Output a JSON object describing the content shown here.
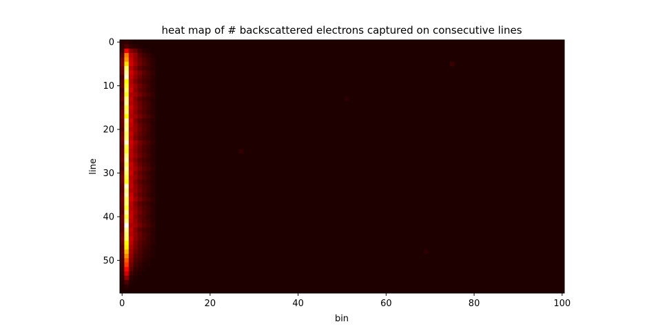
{
  "chart_data": {
    "type": "heatmap",
    "title": "heat map of # backscattered electrons captured on consecutive lines",
    "xlabel": "bin",
    "ylabel": "line",
    "xlim": [
      -0.5,
      100.5
    ],
    "ylim": [
      57.5,
      -0.5
    ],
    "n_cols": 101,
    "n_rows": 58,
    "x_ticks": [
      0,
      20,
      40,
      60,
      80,
      100
    ],
    "y_ticks": [
      0,
      10,
      20,
      30,
      40,
      50
    ],
    "colormap": "hot",
    "color_range": [
      0,
      1
    ],
    "background_value": 0.03,
    "column_profiles": [
      {
        "bin": 0,
        "values": [
          0.05,
          0.06,
          0.08,
          0.12,
          0.16,
          0.18,
          0.15,
          0.14,
          0.1,
          0.12,
          0.13,
          0.1,
          0.12,
          0.14,
          0.1,
          0.12,
          0.15,
          0.16,
          0.14,
          0.13,
          0.12,
          0.15,
          0.16,
          0.14,
          0.12,
          0.13,
          0.14,
          0.15,
          0.12,
          0.11,
          0.14,
          0.16,
          0.15,
          0.13,
          0.12,
          0.14,
          0.15,
          0.14,
          0.13,
          0.12,
          0.15,
          0.14,
          0.13,
          0.12,
          0.15,
          0.16,
          0.14,
          0.12,
          0.13,
          0.12,
          0.1,
          0.09,
          0.08,
          0.06,
          0.05,
          0.04,
          0.03,
          0.03
        ]
      },
      {
        "bin": 1,
        "values": [
          0.06,
          0.1,
          0.35,
          0.55,
          0.6,
          0.7,
          0.85,
          0.9,
          0.95,
          0.75,
          0.8,
          0.85,
          0.78,
          0.88,
          0.9,
          0.82,
          0.86,
          0.75,
          0.92,
          0.88,
          0.9,
          0.85,
          0.87,
          0.95,
          0.82,
          0.8,
          0.88,
          0.92,
          0.85,
          0.9,
          0.86,
          0.82,
          0.78,
          0.95,
          0.88,
          0.92,
          0.85,
          0.86,
          0.8,
          0.9,
          0.82,
          0.88,
          1.0,
          0.9,
          0.86,
          0.85,
          0.75,
          0.72,
          0.65,
          0.58,
          0.5,
          0.45,
          0.38,
          0.3,
          0.2,
          0.1,
          0.05,
          0.03
        ]
      },
      {
        "bin": 2,
        "values": [
          0.04,
          0.06,
          0.18,
          0.26,
          0.28,
          0.3,
          0.26,
          0.3,
          0.28,
          0.25,
          0.27,
          0.3,
          0.25,
          0.28,
          0.26,
          0.29,
          0.27,
          0.25,
          0.3,
          0.28,
          0.26,
          0.29,
          0.27,
          0.3,
          0.28,
          0.26,
          0.27,
          0.25,
          0.29,
          0.28,
          0.3,
          0.26,
          0.27,
          0.28,
          0.25,
          0.29,
          0.3,
          0.27,
          0.26,
          0.28,
          0.29,
          0.27,
          0.25,
          0.28,
          0.26,
          0.29,
          0.27,
          0.24,
          0.22,
          0.2,
          0.18,
          0.15,
          0.12,
          0.08,
          0.05,
          0.04,
          0.03,
          0.03
        ]
      },
      {
        "bin": 3,
        "values": [
          0.03,
          0.05,
          0.14,
          0.2,
          0.2,
          0.22,
          0.18,
          0.22,
          0.2,
          0.17,
          0.21,
          0.19,
          0.22,
          0.18,
          0.2,
          0.21,
          0.19,
          0.22,
          0.18,
          0.2,
          0.21,
          0.19,
          0.17,
          0.22,
          0.2,
          0.19,
          0.21,
          0.18,
          0.2,
          0.22,
          0.19,
          0.21,
          0.18,
          0.2,
          0.21,
          0.19,
          0.22,
          0.18,
          0.2,
          0.21,
          0.19,
          0.2,
          0.22,
          0.18,
          0.2,
          0.19,
          0.17,
          0.16,
          0.14,
          0.12,
          0.1,
          0.08,
          0.06,
          0.05,
          0.04,
          0.03,
          0.03,
          0.03
        ]
      },
      {
        "bin": 4,
        "values": [
          0.03,
          0.04,
          0.08,
          0.12,
          0.14,
          0.15,
          0.12,
          0.16,
          0.14,
          0.12,
          0.15,
          0.13,
          0.16,
          0.12,
          0.14,
          0.15,
          0.13,
          0.16,
          0.12,
          0.14,
          0.15,
          0.13,
          0.12,
          0.16,
          0.14,
          0.13,
          0.15,
          0.12,
          0.14,
          0.16,
          0.13,
          0.15,
          0.12,
          0.14,
          0.15,
          0.13,
          0.16,
          0.12,
          0.14,
          0.15,
          0.13,
          0.14,
          0.16,
          0.12,
          0.14,
          0.13,
          0.12,
          0.11,
          0.1,
          0.09,
          0.08,
          0.06,
          0.05,
          0.04,
          0.03,
          0.03,
          0.03,
          0.03
        ]
      },
      {
        "bin": 5,
        "values": [
          0.03,
          0.03,
          0.05,
          0.08,
          0.1,
          0.11,
          0.09,
          0.12,
          0.1,
          0.09,
          0.11,
          0.1,
          0.12,
          0.09,
          0.1,
          0.11,
          0.1,
          0.12,
          0.09,
          0.1,
          0.11,
          0.1,
          0.09,
          0.12,
          0.1,
          0.1,
          0.11,
          0.09,
          0.1,
          0.12,
          0.1,
          0.11,
          0.09,
          0.1,
          0.11,
          0.1,
          0.12,
          0.09,
          0.1,
          0.11,
          0.1,
          0.1,
          0.12,
          0.09,
          0.1,
          0.1,
          0.09,
          0.08,
          0.07,
          0.06,
          0.05,
          0.04,
          0.04,
          0.03,
          0.03,
          0.03,
          0.03,
          0.03
        ]
      },
      {
        "bin": 6,
        "values": [
          0.03,
          0.03,
          0.04,
          0.06,
          0.07,
          0.08,
          0.07,
          0.09,
          0.08,
          0.07,
          0.08,
          0.07,
          0.09,
          0.07,
          0.08,
          0.08,
          0.07,
          0.09,
          0.07,
          0.08,
          0.08,
          0.07,
          0.07,
          0.09,
          0.08,
          0.07,
          0.08,
          0.07,
          0.08,
          0.09,
          0.07,
          0.08,
          0.07,
          0.08,
          0.08,
          0.07,
          0.09,
          0.07,
          0.08,
          0.08,
          0.07,
          0.08,
          0.09,
          0.07,
          0.08,
          0.07,
          0.07,
          0.06,
          0.05,
          0.05,
          0.04,
          0.04,
          0.03,
          0.03,
          0.03,
          0.03,
          0.03,
          0.03
        ]
      },
      {
        "bin": 7,
        "values": [
          0.03,
          0.03,
          0.03,
          0.04,
          0.05,
          0.05,
          0.05,
          0.06,
          0.05,
          0.05,
          0.05,
          0.05,
          0.06,
          0.05,
          0.05,
          0.05,
          0.05,
          0.06,
          0.05,
          0.05,
          0.05,
          0.05,
          0.05,
          0.06,
          0.05,
          0.05,
          0.05,
          0.05,
          0.05,
          0.06,
          0.05,
          0.05,
          0.05,
          0.05,
          0.05,
          0.05,
          0.06,
          0.05,
          0.05,
          0.05,
          0.05,
          0.05,
          0.06,
          0.05,
          0.05,
          0.05,
          0.05,
          0.04,
          0.04,
          0.04,
          0.03,
          0.03,
          0.03,
          0.03,
          0.03,
          0.03,
          0.03,
          0.03
        ]
      }
    ],
    "sparse_hotspots": [
      {
        "bin": 75,
        "line": 5,
        "value": 0.07
      },
      {
        "bin": 27,
        "line": 25,
        "value": 0.06
      },
      {
        "bin": 51,
        "line": 13,
        "value": 0.05
      },
      {
        "bin": 69,
        "line": 48,
        "value": 0.05
      }
    ]
  }
}
